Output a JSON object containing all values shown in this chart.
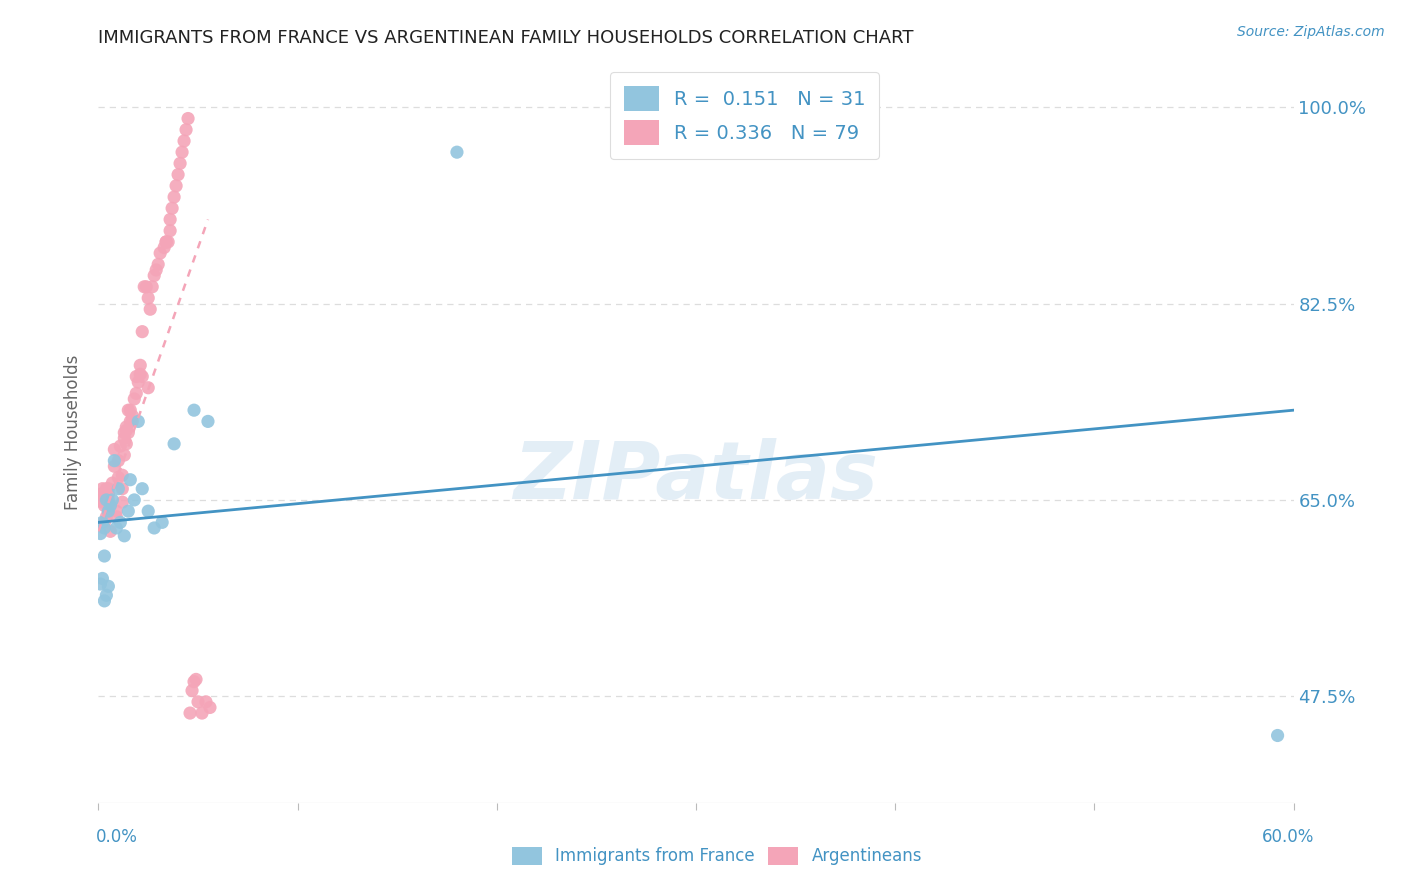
{
  "title": "IMMIGRANTS FROM FRANCE VS ARGENTINEAN FAMILY HOUSEHOLDS CORRELATION CHART",
  "source": "Source: ZipAtlas.com",
  "ylabel": "Family Households",
  "ytick_vals": [
    0.475,
    0.65,
    0.825,
    1.0
  ],
  "ytick_labels": [
    "47.5%",
    "65.0%",
    "82.5%",
    "100.0%"
  ],
  "blue_color": "#92c5de",
  "pink_color": "#f4a5b8",
  "blue_line_color": "#4393c3",
  "pink_line_color": "#e87ca0",
  "watermark": "ZIPatlas",
  "blue_scatter_x": [
    0.001,
    0.001,
    0.002,
    0.002,
    0.003,
    0.003,
    0.003,
    0.004,
    0.004,
    0.005,
    0.005,
    0.006,
    0.007,
    0.008,
    0.009,
    0.01,
    0.011,
    0.013,
    0.015,
    0.016,
    0.018,
    0.02,
    0.022,
    0.025,
    0.028,
    0.032,
    0.038,
    0.048,
    0.055,
    0.18,
    0.592
  ],
  "blue_scatter_y": [
    0.575,
    0.62,
    0.58,
    0.63,
    0.56,
    0.6,
    0.625,
    0.565,
    0.65,
    0.573,
    0.64,
    0.645,
    0.65,
    0.685,
    0.625,
    0.66,
    0.63,
    0.618,
    0.64,
    0.668,
    0.65,
    0.72,
    0.66,
    0.64,
    0.625,
    0.63,
    0.7,
    0.73,
    0.72,
    0.96,
    0.44
  ],
  "pink_scatter_x": [
    0.001,
    0.001,
    0.002,
    0.002,
    0.003,
    0.003,
    0.004,
    0.004,
    0.005,
    0.005,
    0.005,
    0.005,
    0.006,
    0.006,
    0.007,
    0.008,
    0.008,
    0.009,
    0.009,
    0.01,
    0.01,
    0.011,
    0.012,
    0.012,
    0.012,
    0.013,
    0.013,
    0.013,
    0.014,
    0.014,
    0.014,
    0.015,
    0.015,
    0.016,
    0.016,
    0.017,
    0.017,
    0.018,
    0.019,
    0.019,
    0.02,
    0.021,
    0.021,
    0.022,
    0.022,
    0.023,
    0.024,
    0.025,
    0.025,
    0.026,
    0.027,
    0.028,
    0.029,
    0.03,
    0.031,
    0.033,
    0.034,
    0.034,
    0.035,
    0.036,
    0.036,
    0.037,
    0.038,
    0.039,
    0.04,
    0.041,
    0.042,
    0.043,
    0.044,
    0.045,
    0.046,
    0.047,
    0.048,
    0.049,
    0.05,
    0.052,
    0.054,
    0.056
  ],
  "pink_scatter_y": [
    0.65,
    0.655,
    0.648,
    0.66,
    0.63,
    0.645,
    0.635,
    0.66,
    0.64,
    0.65,
    0.655,
    0.66,
    0.622,
    0.645,
    0.665,
    0.68,
    0.695,
    0.635,
    0.64,
    0.67,
    0.685,
    0.698,
    0.648,
    0.66,
    0.672,
    0.69,
    0.705,
    0.71,
    0.7,
    0.712,
    0.715,
    0.71,
    0.73,
    0.72,
    0.73,
    0.72,
    0.725,
    0.74,
    0.745,
    0.76,
    0.755,
    0.762,
    0.77,
    0.76,
    0.8,
    0.84,
    0.84,
    0.75,
    0.83,
    0.82,
    0.84,
    0.85,
    0.855,
    0.86,
    0.87,
    0.875,
    0.88,
    0.88,
    0.88,
    0.89,
    0.9,
    0.91,
    0.92,
    0.93,
    0.94,
    0.95,
    0.96,
    0.97,
    0.98,
    0.99,
    0.46,
    0.48,
    0.488,
    0.49,
    0.47,
    0.46,
    0.47,
    0.465
  ],
  "xmin": 0.0,
  "xmax": 0.6,
  "ymin": 0.38,
  "ymax": 1.04,
  "blue_trend_x": [
    0.0,
    0.6
  ],
  "blue_trend_y": [
    0.63,
    0.73
  ],
  "pink_trend_x": [
    0.0,
    0.055
  ],
  "pink_trend_y": [
    0.622,
    0.9
  ],
  "title_fontsize": 13,
  "tick_label_color": "#4393c3",
  "source_color": "#4393c3"
}
